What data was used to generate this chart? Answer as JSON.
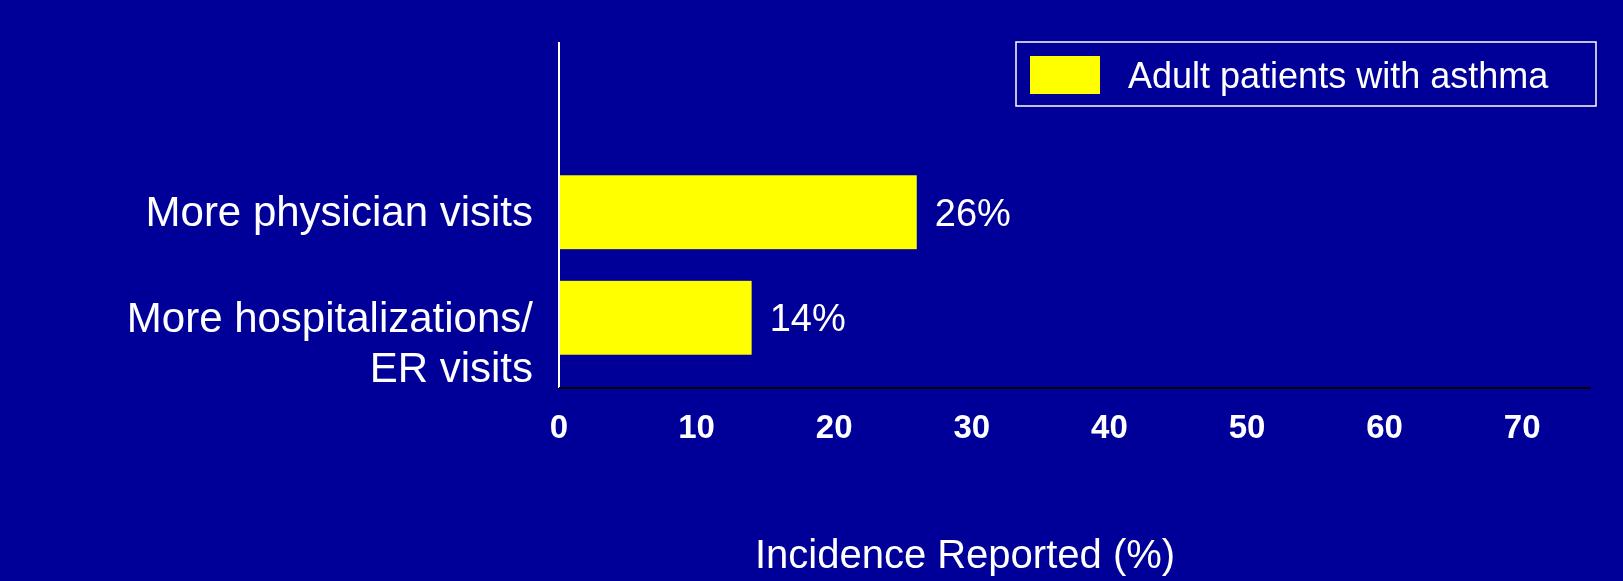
{
  "chart_data": {
    "type": "bar",
    "orientation": "horizontal",
    "xlabel": "Incidence Reported (%)",
    "categories": [
      "More physician visits",
      "More hospitalizations/\nER visits"
    ],
    "series": [
      {
        "name": "Adult patients with asthma",
        "color": "#ffff00",
        "values": [
          26,
          14
        ],
        "value_labels": [
          "26%",
          "14%"
        ]
      }
    ],
    "xlim": [
      0,
      75
    ],
    "xticks": [
      0,
      10,
      20,
      30,
      40,
      50,
      60,
      70
    ],
    "legend": "top right",
    "grid": false
  }
}
